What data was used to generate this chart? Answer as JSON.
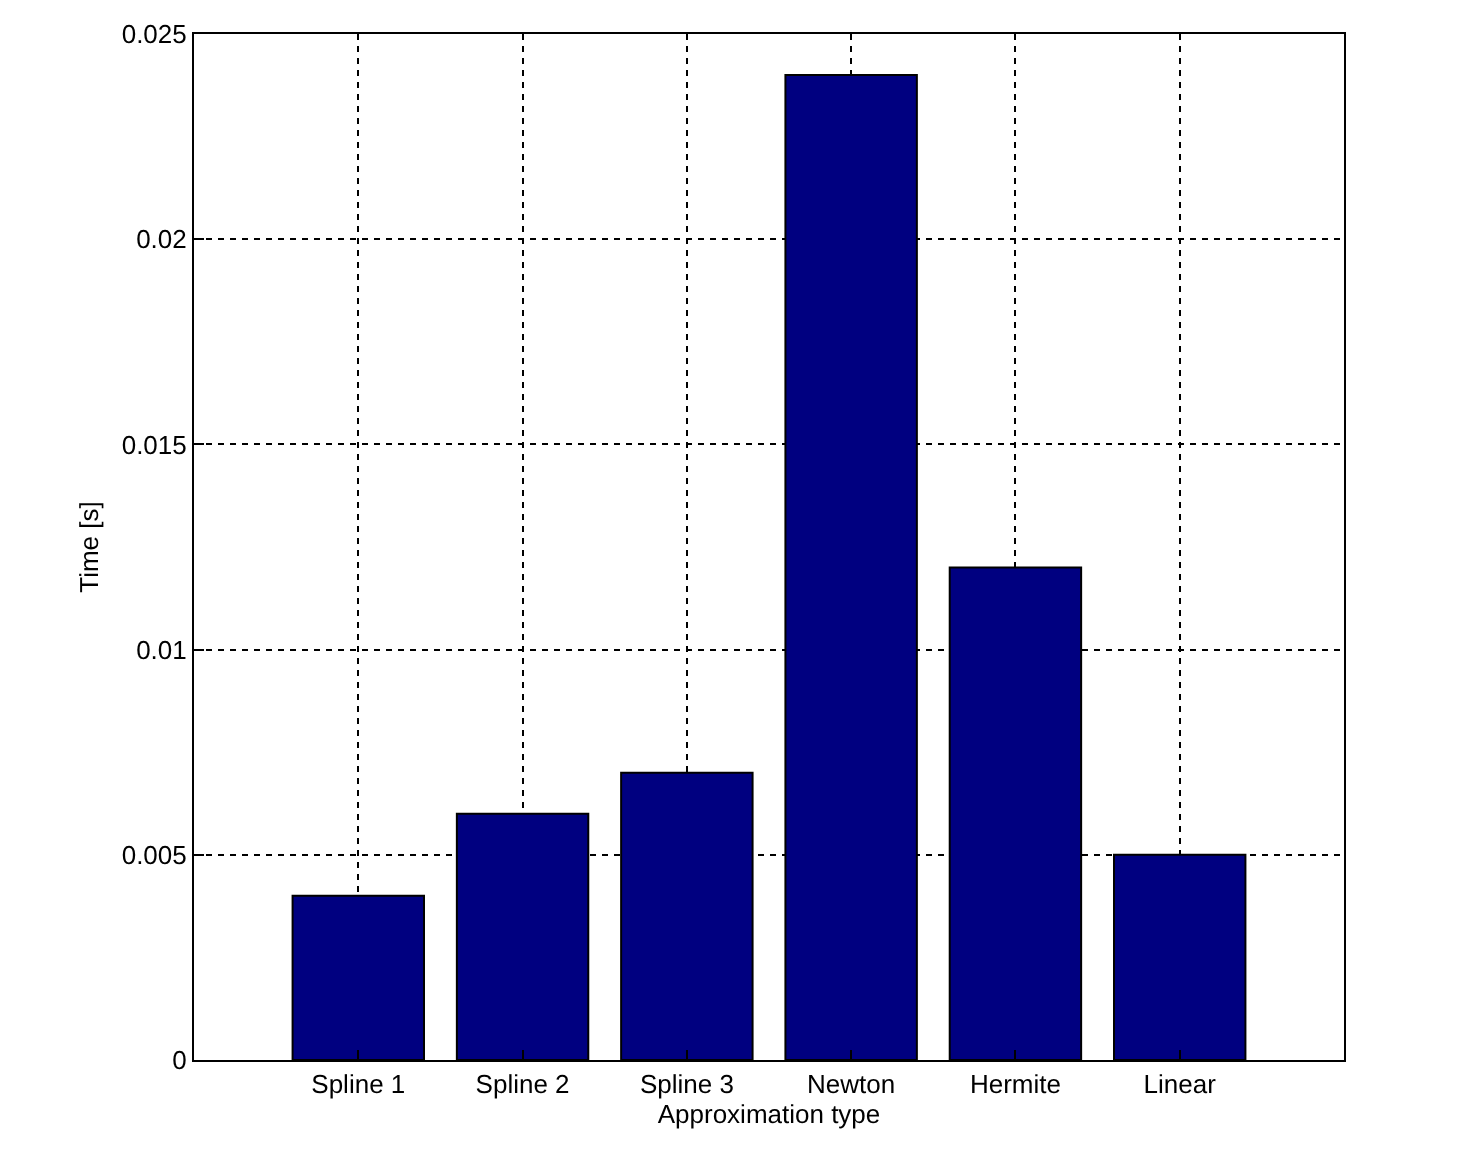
{
  "chart_data": {
    "type": "bar",
    "xlabel": "Approximation type",
    "ylabel": "Time [s]",
    "categories": [
      "Spline 1",
      "Spline 2",
      "Spline 3",
      "Newton",
      "Hermite",
      "Linear"
    ],
    "values": [
      0.004,
      0.006,
      0.007,
      0.024,
      0.012,
      0.005
    ],
    "color": "#000080",
    "ylim": [
      0,
      0.025
    ],
    "yticks": [
      0,
      0.005,
      0.01,
      0.015,
      0.02,
      0.025
    ],
    "grid": true
  }
}
